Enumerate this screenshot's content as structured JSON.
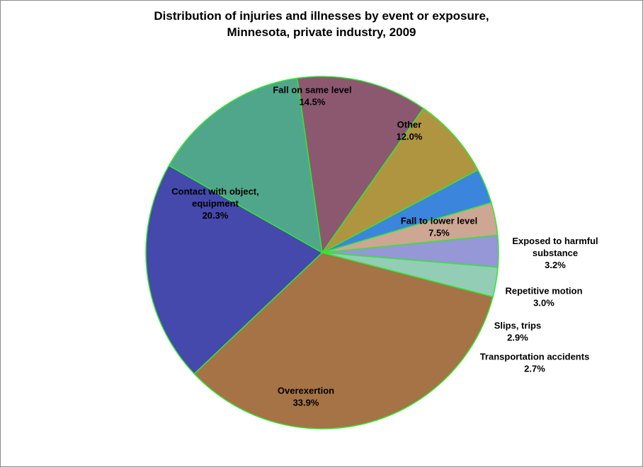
{
  "chart_data": {
    "type": "pie",
    "title_lines": [
      "Distribution of injuries and illnesses by event or exposure,",
      "Minnesota, private industry, 2009"
    ],
    "slices": [
      {
        "name": "Overexertion",
        "label_lines": [
          "Overexertion"
        ],
        "value": 33.9,
        "display": "33.9%",
        "color": "#A57346"
      },
      {
        "name": "Contact with object, equipment",
        "label_lines": [
          "Contact with object,",
          "equipment"
        ],
        "value": 20.3,
        "display": "20.3%",
        "color": "#4449AB"
      },
      {
        "name": "Fall on same level",
        "label_lines": [
          "Fall on same level"
        ],
        "value": 14.5,
        "display": "14.5%",
        "color": "#50A68A"
      },
      {
        "name": "Other",
        "label_lines": [
          "Other"
        ],
        "value": 12.0,
        "display": "12.0%",
        "color": "#8C5870"
      },
      {
        "name": "Fall to lower level",
        "label_lines": [
          "Fall to lower level"
        ],
        "value": 7.5,
        "display": "7.5%",
        "color": "#B09540"
      },
      {
        "name": "Exposed to harmful substance",
        "label_lines": [
          "Exposed to harmful",
          "substance"
        ],
        "value": 3.2,
        "display": "3.2%",
        "color": "#3C85DC"
      },
      {
        "name": "Repetitive motion",
        "label_lines": [
          "Repetitive motion"
        ],
        "value": 3.0,
        "display": "3.0%",
        "color": "#CEA794"
      },
      {
        "name": "Slips, trips",
        "label_lines": [
          "Slips, trips"
        ],
        "value": 2.9,
        "display": "2.9%",
        "color": "#9597D6"
      },
      {
        "name": "Transportation accidents",
        "label_lines": [
          "Transportation accidents"
        ],
        "value": 2.7,
        "display": "2.7%",
        "color": "#93CDB5"
      }
    ],
    "edge_color": "#33E633",
    "legend": "none",
    "label_placement": "inside for large slices, outside for small slices"
  }
}
